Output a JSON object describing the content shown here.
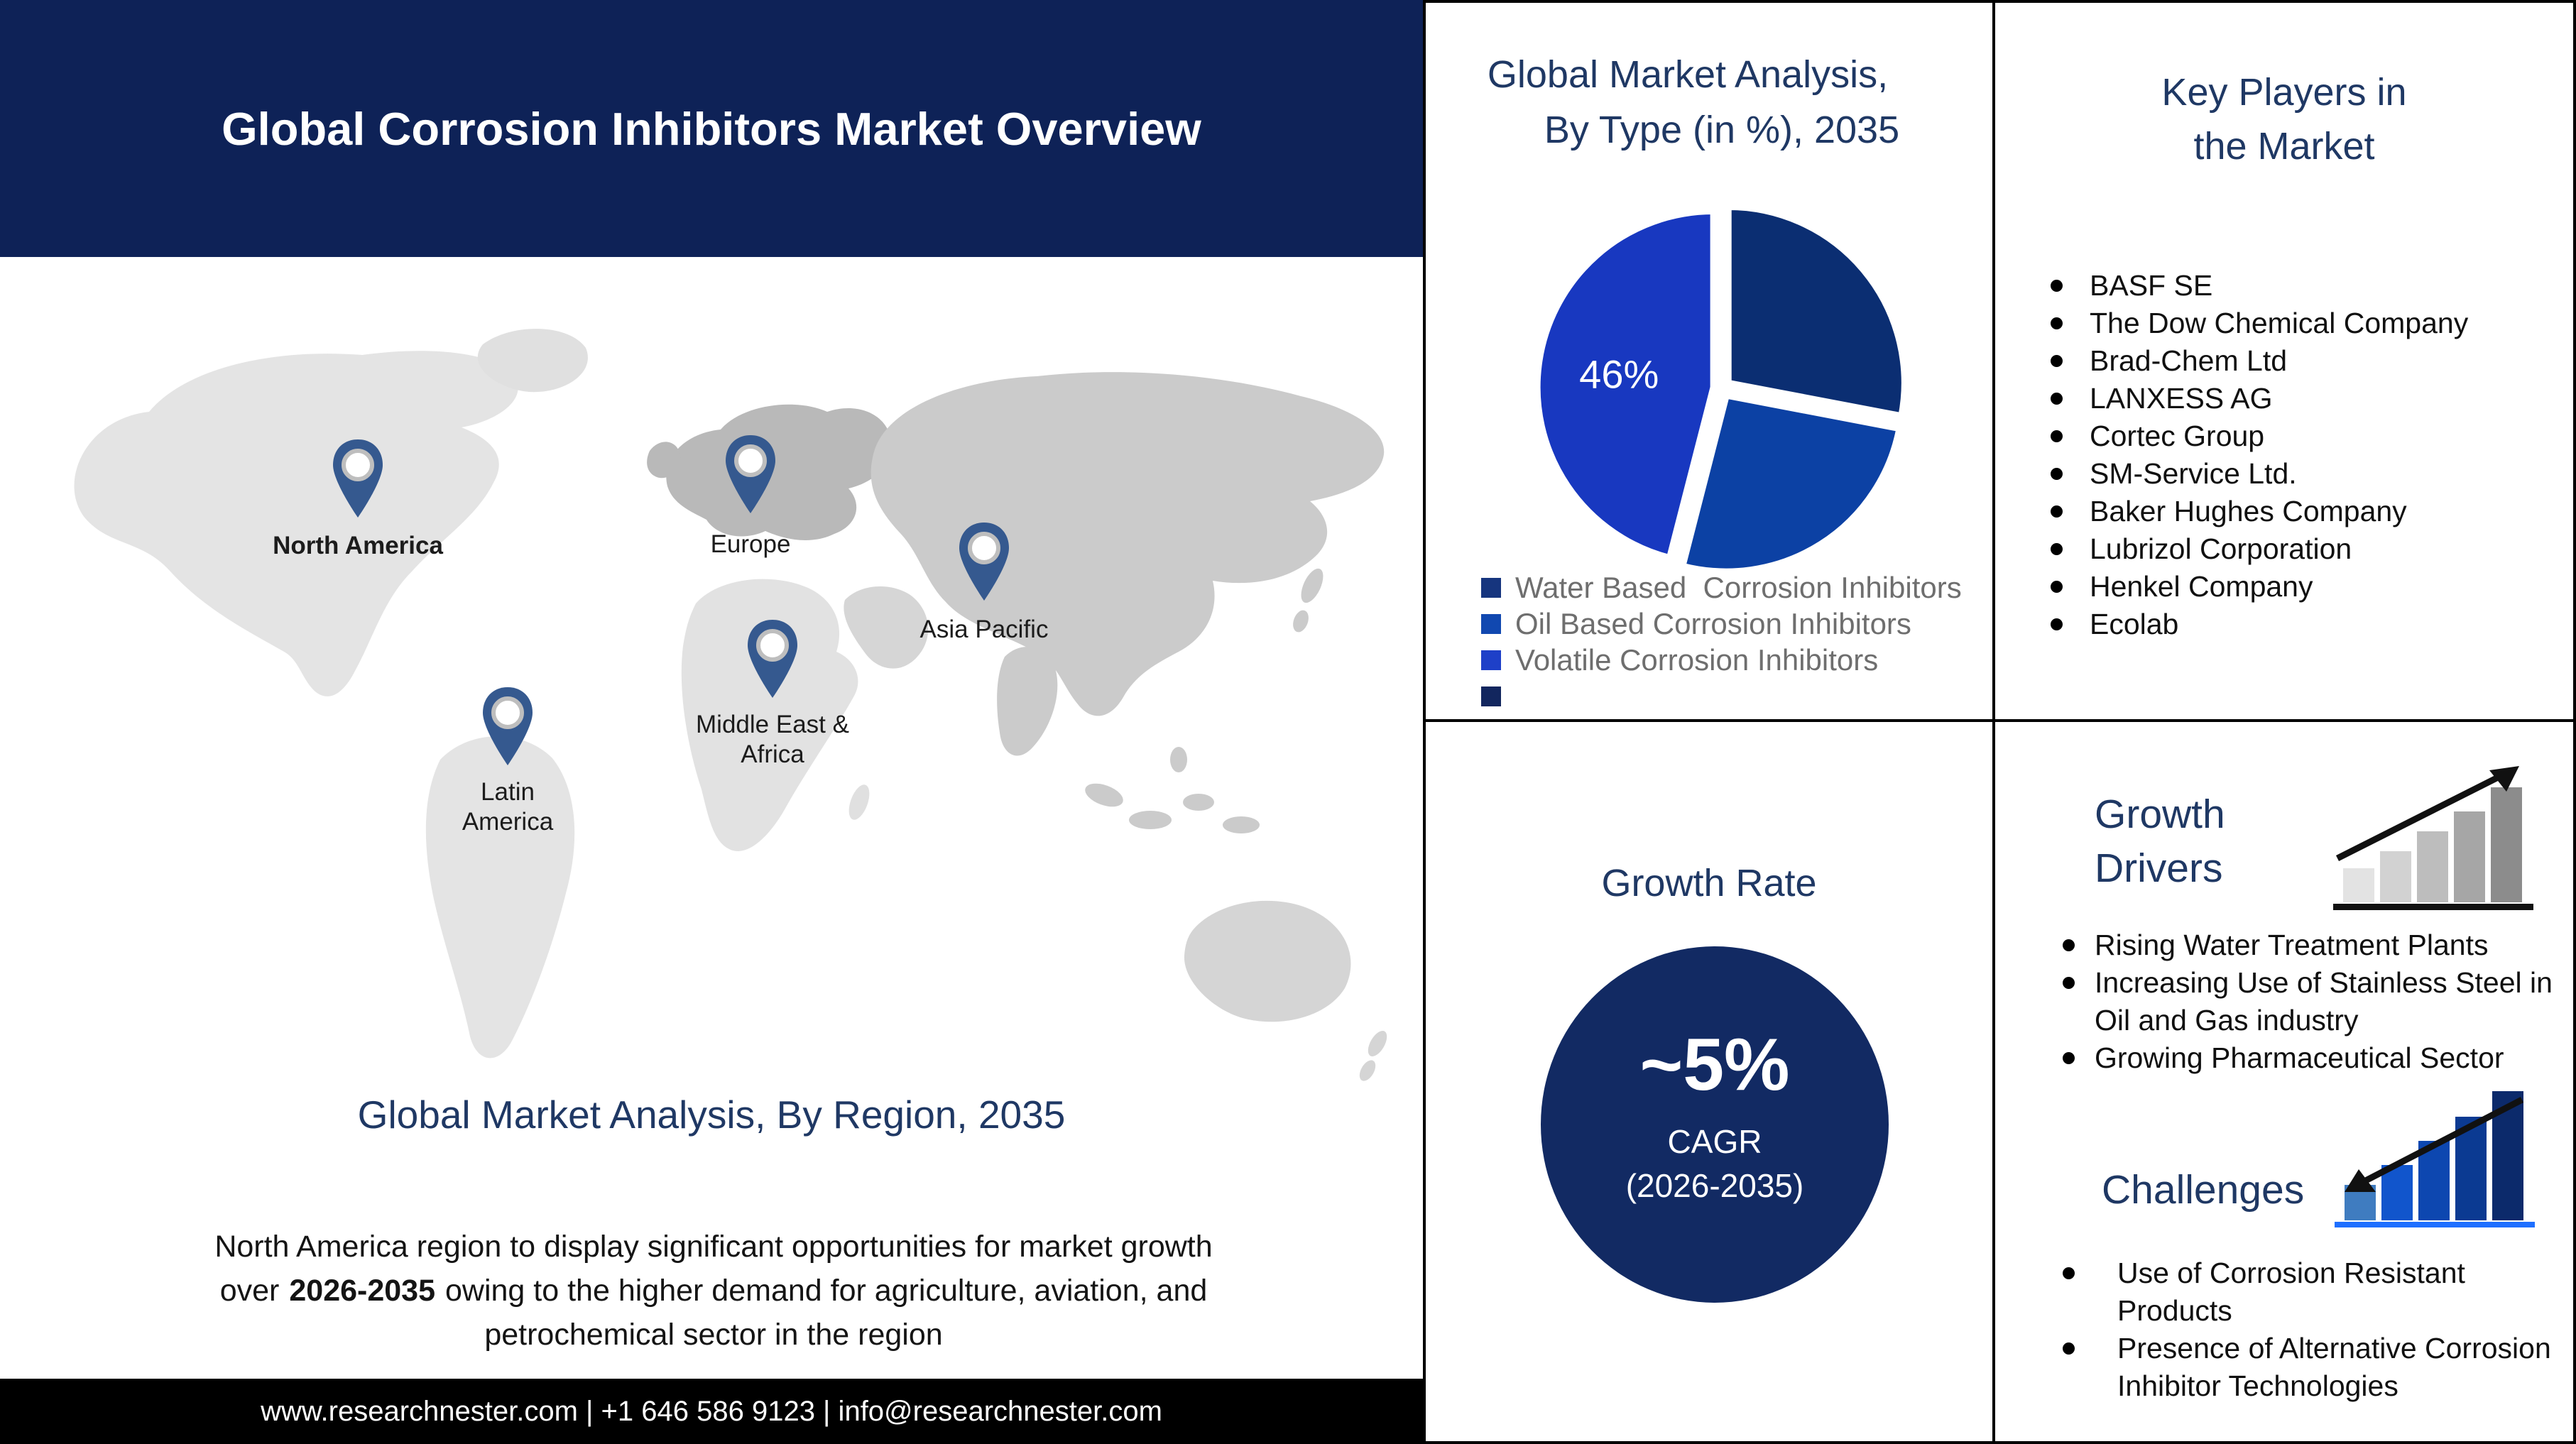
{
  "header": {
    "title": "Global Corrosion Inhibitors Market Overview"
  },
  "map": {
    "regions": [
      {
        "label": "North America"
      },
      {
        "label": "Europe"
      },
      {
        "label": "Asia Pacific"
      },
      {
        "label": "Middle East & Africa"
      },
      {
        "label": "Latin America"
      }
    ],
    "heading": "Global Market Analysis, By Region, 2035",
    "paragraph": {
      "prefix": "North America region to display significant opportunities for market growth over",
      "highlight": "2026-2035",
      "suffix": "owing to the higher demand for agriculture, aviation, and petrochemical sector in the region"
    }
  },
  "pie_panel": {
    "title_line1": "Global Market Analysis,",
    "title_line2": "By Type (in %), 2035",
    "legend": [
      {
        "label": "Water Based  Corrosion Inhibitors",
        "color": "#16357E"
      },
      {
        "label": "Oil Based Corrosion Inhibitors",
        "color": "#1148B0"
      },
      {
        "label": "Volatile Corrosion Inhibitors",
        "color": "#1E40C8"
      },
      {
        "label": "",
        "color": "#12265E"
      }
    ]
  },
  "chart_data": {
    "type": "pie",
    "title": "Global Market Analysis, By Type (in %), 2035",
    "labels": [
      "Water Based  Corrosion Inhibitors",
      "Oil Based Corrosion Inhibitors",
      "Volatile Corrosion Inhibitors"
    ],
    "values": [
      28,
      26,
      46
    ],
    "value_labels_shown": [
      "",
      "",
      "46%"
    ],
    "colors": [
      "#0B2E72",
      "#0C41A4",
      "#1838C0"
    ],
    "start_angle_deg": 0,
    "clockwise": true,
    "exploded": true,
    "legend_position": "bottom-left",
    "estimated": "28 and 26 estimated from arc angles; only 46% is labeled in the image"
  },
  "key_players": {
    "title_line1": "Key Players in",
    "title_line2": "the Market",
    "items": [
      "BASF SE",
      "The Dow Chemical Company",
      "Brad-Chem Ltd",
      "LANXESS AG",
      "Cortec Group",
      "SM-Service Ltd.",
      "Baker Hughes Company",
      "Lubrizol Corporation",
      "Henkel Company",
      "Ecolab"
    ]
  },
  "growth_rate": {
    "title": "Growth Rate",
    "value": "~5%",
    "metric": "CAGR",
    "period": "(2026-2035)"
  },
  "growth_drivers": {
    "title_line1": "Growth",
    "title_line2": "Drivers",
    "items": [
      "Rising Water Treatment Plants",
      "Increasing Use of Stainless Steel in Oil and Gas industry",
      "Growing Pharmaceutical Sector"
    ]
  },
  "challenges": {
    "title": "Challenges",
    "items": [
      "Use of Corrosion Resistant Products",
      "Presence of Alternative Corrosion Inhibitor Technologies"
    ]
  },
  "footer": {
    "text": "www.researchnester.com | +1 646 586 9123 | info@researchnester.com"
  },
  "colors": {
    "header_navy": "#0E2257",
    "section_title_blue": "#1F3864",
    "rate_circle_navy": "#122A63",
    "pin_blue": "#35598F",
    "legend_text_gray": "#6e6e6e",
    "europe_gray": "#B9B9B9",
    "asia_gray": "#CBCBCB",
    "land_gray": "#E4E4E4",
    "challenge_bar_blues": [
      "#3F7CC0",
      "#1155CC",
      "#0D47B0",
      "#0B3A92",
      "#0C2A6B"
    ],
    "driver_bar_grays": [
      "#E3E3E3",
      "#D2D2D2",
      "#BDBDBD",
      "#A6A6A6",
      "#8C8C8C"
    ]
  }
}
